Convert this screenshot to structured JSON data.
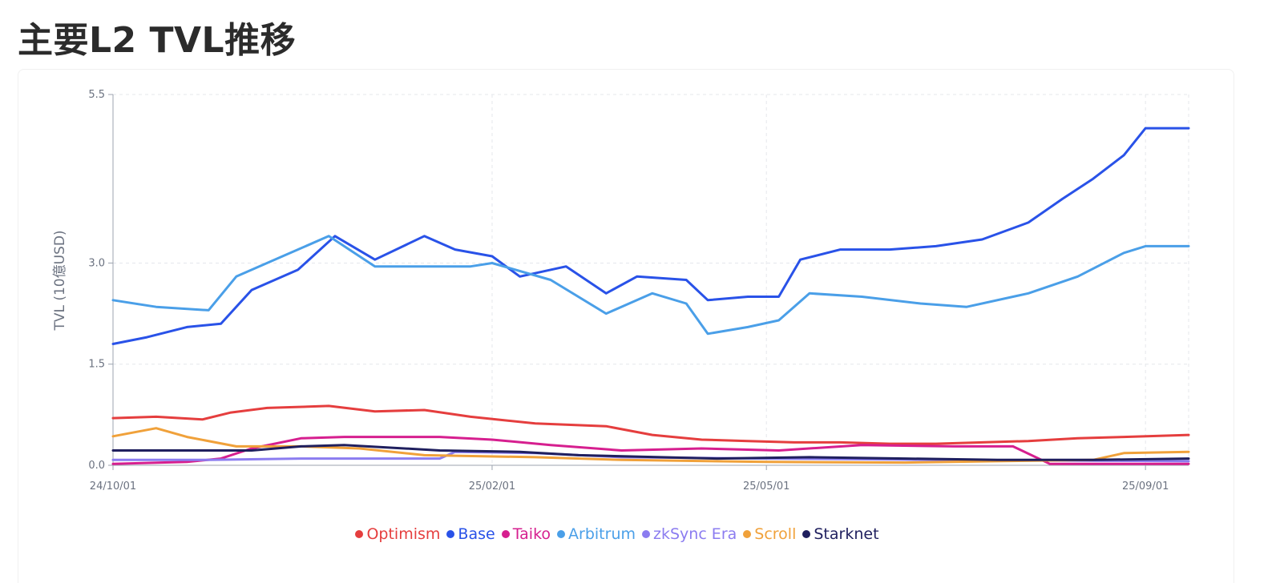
{
  "title": "主要L2 TVL推移",
  "chart_data": {
    "type": "line",
    "ylabel": "TVL (10億USD)",
    "xlabel": "",
    "ylim": [
      0,
      5.5
    ],
    "yticks": [
      0.0,
      1.5,
      3.0,
      5.5
    ],
    "ytick_labels": [
      "0.0",
      "1.5",
      "3.0",
      "5.5"
    ],
    "xlim": [
      "2024-10-01",
      "2025-09-15"
    ],
    "xticks": [
      "2024-10-01",
      "2025-02-01",
      "2025-05-01",
      "2025-09-01"
    ],
    "xtick_labels": [
      "24/10/01",
      "25/02/01",
      "25/05/01",
      "25/09/01"
    ],
    "grid": true,
    "legend_position": "bottom",
    "series": [
      {
        "name": "Optimism",
        "color": "#e53e3e",
        "points": [
          [
            "2024-10-01",
            0.7
          ],
          [
            "2024-10-15",
            0.72
          ],
          [
            "2024-10-30",
            0.68
          ],
          [
            "2024-11-08",
            0.78
          ],
          [
            "2024-11-20",
            0.85
          ],
          [
            "2024-12-10",
            0.88
          ],
          [
            "2024-12-25",
            0.8
          ],
          [
            "2025-01-10",
            0.82
          ],
          [
            "2025-01-25",
            0.72
          ],
          [
            "2025-02-15",
            0.62
          ],
          [
            "2025-03-10",
            0.58
          ],
          [
            "2025-03-25",
            0.45
          ],
          [
            "2025-04-10",
            0.38
          ],
          [
            "2025-04-25",
            0.36
          ],
          [
            "2025-05-10",
            0.34
          ],
          [
            "2025-05-25",
            0.34
          ],
          [
            "2025-06-10",
            0.32
          ],
          [
            "2025-06-25",
            0.32
          ],
          [
            "2025-07-10",
            0.34
          ],
          [
            "2025-07-25",
            0.36
          ],
          [
            "2025-08-10",
            0.4
          ],
          [
            "2025-08-25",
            0.42
          ],
          [
            "2025-09-15",
            0.45
          ]
        ]
      },
      {
        "name": "Base",
        "color": "#2952e8",
        "points": [
          [
            "2024-10-01",
            1.8
          ],
          [
            "2024-10-12",
            1.9
          ],
          [
            "2024-10-25",
            2.05
          ],
          [
            "2024-11-05",
            2.1
          ],
          [
            "2024-11-15",
            2.6
          ],
          [
            "2024-11-30",
            2.9
          ],
          [
            "2024-12-12",
            3.4
          ],
          [
            "2024-12-25",
            3.05
          ],
          [
            "2025-01-10",
            3.4
          ],
          [
            "2025-01-20",
            3.2
          ],
          [
            "2025-02-01",
            3.1
          ],
          [
            "2025-02-10",
            2.8
          ],
          [
            "2025-02-25",
            2.95
          ],
          [
            "2025-03-10",
            2.55
          ],
          [
            "2025-03-20",
            2.8
          ],
          [
            "2025-04-05",
            2.75
          ],
          [
            "2025-04-12",
            2.45
          ],
          [
            "2025-04-25",
            2.5
          ],
          [
            "2025-05-05",
            2.5
          ],
          [
            "2025-05-12",
            3.05
          ],
          [
            "2025-05-25",
            3.2
          ],
          [
            "2025-06-10",
            3.2
          ],
          [
            "2025-06-25",
            3.25
          ],
          [
            "2025-07-10",
            3.35
          ],
          [
            "2025-07-25",
            3.6
          ],
          [
            "2025-08-05",
            3.95
          ],
          [
            "2025-08-15",
            4.25
          ],
          [
            "2025-08-25",
            4.6
          ],
          [
            "2025-09-01",
            5.0
          ],
          [
            "2025-09-15",
            5.0
          ]
        ]
      },
      {
        "name": "Taiko",
        "color": "#d61f8f",
        "points": [
          [
            "2024-10-01",
            0.02
          ],
          [
            "2024-10-25",
            0.05
          ],
          [
            "2024-11-05",
            0.1
          ],
          [
            "2024-11-15",
            0.25
          ],
          [
            "2024-12-01",
            0.4
          ],
          [
            "2024-12-15",
            0.42
          ],
          [
            "2025-01-15",
            0.42
          ],
          [
            "2025-02-01",
            0.38
          ],
          [
            "2025-02-20",
            0.3
          ],
          [
            "2025-03-15",
            0.22
          ],
          [
            "2025-04-10",
            0.25
          ],
          [
            "2025-05-05",
            0.22
          ],
          [
            "2025-06-01",
            0.3
          ],
          [
            "2025-07-01",
            0.28
          ],
          [
            "2025-07-20",
            0.28
          ],
          [
            "2025-08-01",
            0.02
          ],
          [
            "2025-09-15",
            0.02
          ]
        ]
      },
      {
        "name": "Arbitrum",
        "color": "#4a9fe8",
        "points": [
          [
            "2024-10-01",
            2.45
          ],
          [
            "2024-10-15",
            2.35
          ],
          [
            "2024-11-01",
            2.3
          ],
          [
            "2024-11-10",
            2.8
          ],
          [
            "2024-11-25",
            3.1
          ],
          [
            "2024-12-10",
            3.4
          ],
          [
            "2024-12-25",
            2.95
          ],
          [
            "2025-01-10",
            2.95
          ],
          [
            "2025-01-25",
            2.95
          ],
          [
            "2025-02-01",
            3.0
          ],
          [
            "2025-02-20",
            2.75
          ],
          [
            "2025-03-10",
            2.25
          ],
          [
            "2025-03-25",
            2.55
          ],
          [
            "2025-04-05",
            2.4
          ],
          [
            "2025-04-12",
            1.95
          ],
          [
            "2025-04-25",
            2.05
          ],
          [
            "2025-05-05",
            2.15
          ],
          [
            "2025-05-15",
            2.55
          ],
          [
            "2025-06-01",
            2.5
          ],
          [
            "2025-06-20",
            2.4
          ],
          [
            "2025-07-05",
            2.35
          ],
          [
            "2025-07-25",
            2.55
          ],
          [
            "2025-08-10",
            2.8
          ],
          [
            "2025-08-25",
            3.15
          ],
          [
            "2025-09-01",
            3.25
          ],
          [
            "2025-09-15",
            3.25
          ]
        ]
      },
      {
        "name": "zkSync Era",
        "color": "#8b7cf0",
        "points": [
          [
            "2024-10-01",
            0.08
          ],
          [
            "2024-11-01",
            0.08
          ],
          [
            "2024-12-01",
            0.1
          ],
          [
            "2025-01-15",
            0.1
          ],
          [
            "2025-01-20",
            0.2
          ],
          [
            "2025-02-15",
            0.18
          ],
          [
            "2025-03-15",
            0.12
          ],
          [
            "2025-05-01",
            0.1
          ],
          [
            "2025-07-01",
            0.08
          ],
          [
            "2025-09-15",
            0.06
          ]
        ]
      },
      {
        "name": "Scroll",
        "color": "#f0a13a",
        "points": [
          [
            "2024-10-01",
            0.43
          ],
          [
            "2024-10-15",
            0.55
          ],
          [
            "2024-10-25",
            0.42
          ],
          [
            "2024-11-10",
            0.28
          ],
          [
            "2024-12-01",
            0.28
          ],
          [
            "2024-12-20",
            0.25
          ],
          [
            "2025-01-10",
            0.15
          ],
          [
            "2025-02-15",
            0.12
          ],
          [
            "2025-03-15",
            0.08
          ],
          [
            "2025-05-01",
            0.05
          ],
          [
            "2025-06-15",
            0.04
          ],
          [
            "2025-07-15",
            0.06
          ],
          [
            "2025-08-15",
            0.08
          ],
          [
            "2025-08-25",
            0.18
          ],
          [
            "2025-09-15",
            0.2
          ]
        ]
      },
      {
        "name": "Starknet",
        "color": "#1f1f5e",
        "points": [
          [
            "2024-10-01",
            0.22
          ],
          [
            "2024-11-15",
            0.22
          ],
          [
            "2024-12-01",
            0.28
          ],
          [
            "2024-12-15",
            0.3
          ],
          [
            "2025-01-15",
            0.22
          ],
          [
            "2025-02-10",
            0.2
          ],
          [
            "2025-03-01",
            0.15
          ],
          [
            "2025-04-15",
            0.1
          ],
          [
            "2025-05-15",
            0.12
          ],
          [
            "2025-06-15",
            0.1
          ],
          [
            "2025-07-15",
            0.08
          ],
          [
            "2025-08-15",
            0.08
          ],
          [
            "2025-09-15",
            0.1
          ]
        ]
      }
    ]
  }
}
